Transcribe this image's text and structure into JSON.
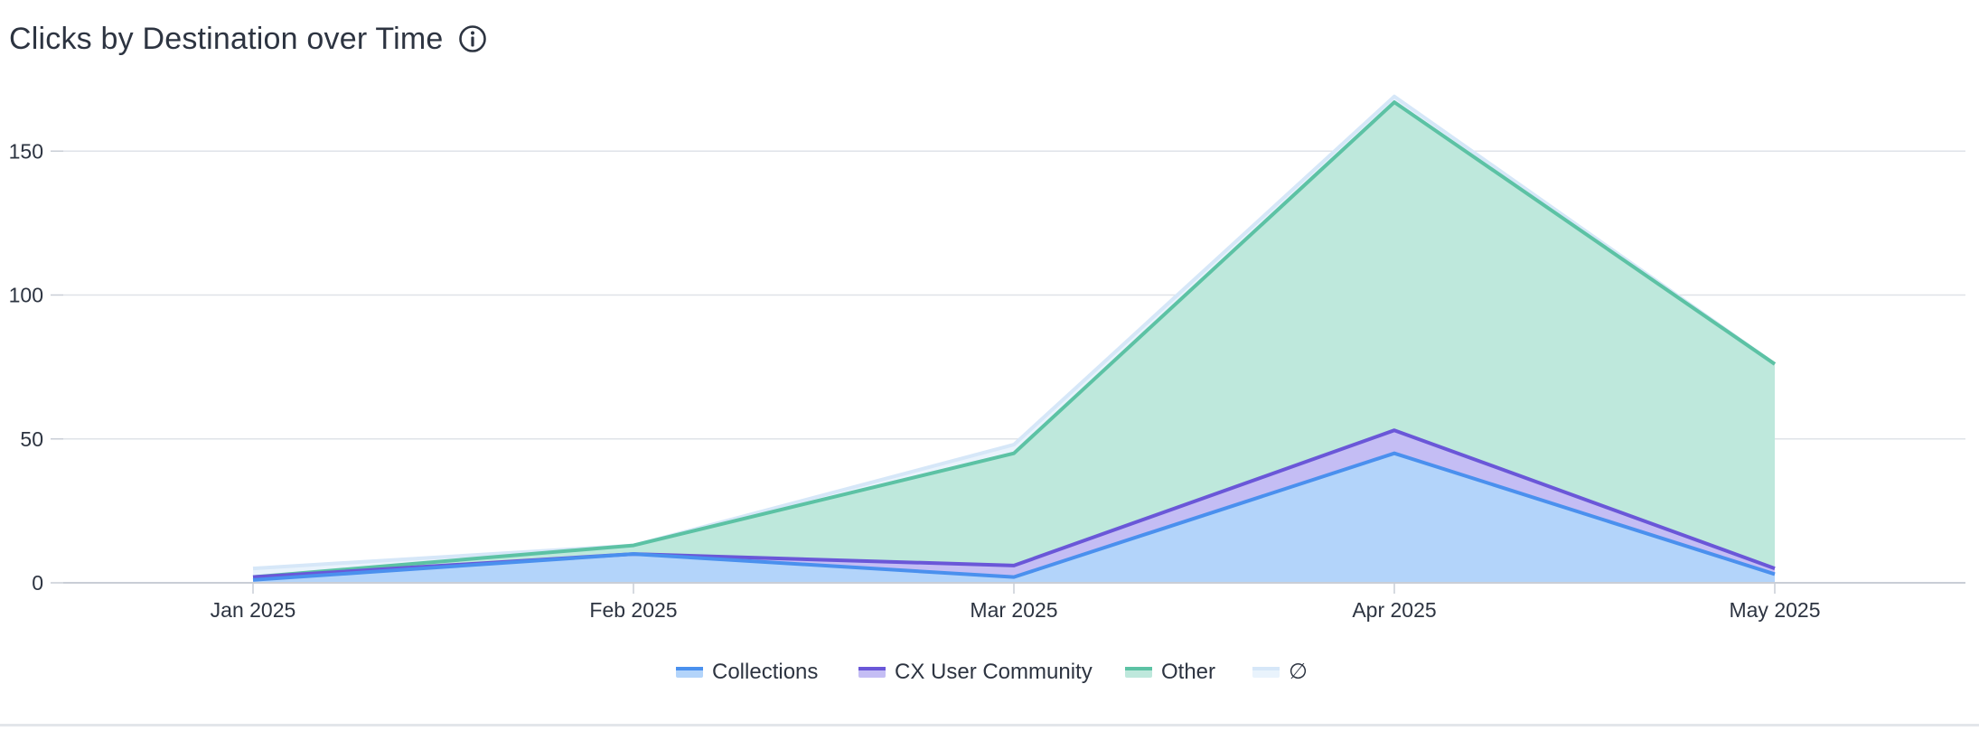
{
  "header": {
    "title": "Clicks by Destination over Time",
    "info_icon": "info-circle-icon"
  },
  "colors": {
    "grid": "#dfe3e8",
    "axis": "#c9ced6",
    "tick_text": "#2d3441",
    "legend_text": "#2d3441"
  },
  "chart_data": {
    "type": "area",
    "stacked": true,
    "title": "",
    "xlabel": "",
    "ylabel": "",
    "categories": [
      "Jan 2025",
      "Feb 2025",
      "Mar 2025",
      "Apr 2025",
      "May 2025"
    ],
    "ylim": [
      0,
      170
    ],
    "yticks": [
      0,
      50,
      100,
      150
    ],
    "grid": true,
    "legend_position": "bottom",
    "series": [
      {
        "name": "Collections",
        "values": [
          1,
          10,
          2,
          45,
          3
        ],
        "line": "#4a90ee",
        "fill": "#b3d4fa"
      },
      {
        "name": "CX User Community",
        "values": [
          1,
          0,
          4,
          8,
          2
        ],
        "line": "#6a57d8",
        "fill": "#c4bdf4"
      },
      {
        "name": "Other",
        "values": [
          0,
          3,
          39,
          114,
          71
        ],
        "line": "#5cc2a4",
        "fill": "#bee8dc"
      },
      {
        "name": "∅",
        "values": [
          3,
          0,
          3,
          2,
          0
        ],
        "line": "#d6e7f8",
        "fill": "#e9f3fc"
      }
    ]
  }
}
